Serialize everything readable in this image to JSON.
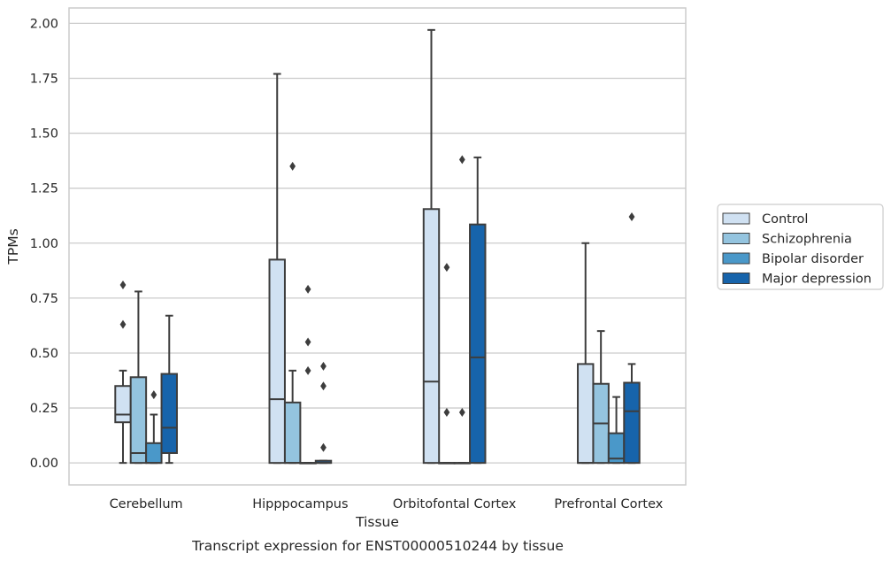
{
  "chart_data": {
    "type": "box",
    "caption": "Transcript expression for ENST00000510244 by tissue",
    "xlabel": "Tissue",
    "ylabel": "TPMs",
    "ylim": [
      -0.1,
      2.07
    ],
    "yticks": [
      "0.00",
      "0.25",
      "0.50",
      "0.75",
      "1.00",
      "1.25",
      "1.50",
      "1.75",
      "2.00"
    ],
    "grid": true,
    "legend_position": "right",
    "categories": [
      "Cerebellum",
      "Hipppocampus",
      "Orbitofontal Cortex",
      "Prefrontal Cortex"
    ],
    "series": [
      {
        "name": "Control",
        "color": "#d0e1f2",
        "boxes": [
          {
            "q1": 0.185,
            "median": 0.22,
            "q3": 0.35,
            "whislo": 0.0,
            "whishi": 0.42,
            "fliers": [
              0.63,
              0.81
            ]
          },
          {
            "q1": 0.0,
            "median": 0.29,
            "q3": 0.925,
            "whislo": 0.0,
            "whishi": 1.77,
            "fliers": []
          },
          {
            "q1": 0.0,
            "median": 0.37,
            "q3": 1.155,
            "whislo": 0.0,
            "whishi": 1.97,
            "fliers": []
          },
          {
            "q1": 0.0,
            "median": 0.0,
            "q3": 0.45,
            "whislo": 0.0,
            "whishi": 1.0,
            "fliers": []
          }
        ]
      },
      {
        "name": "Schizophrenia",
        "color": "#94c4df",
        "boxes": [
          {
            "q1": 0.0,
            "median": 0.045,
            "q3": 0.39,
            "whislo": 0.0,
            "whishi": 0.78,
            "fliers": []
          },
          {
            "q1": 0.0,
            "median": 0.0,
            "q3": 0.275,
            "whislo": 0.0,
            "whishi": 0.42,
            "fliers": [
              1.35
            ]
          },
          {
            "q1": 0.0,
            "median": 0.0,
            "q3": 0.0,
            "whislo": 0.0,
            "whishi": 0.0,
            "fliers": [
              0.23,
              0.89
            ]
          },
          {
            "q1": 0.0,
            "median": 0.18,
            "q3": 0.36,
            "whislo": 0.0,
            "whishi": 0.6,
            "fliers": []
          }
        ]
      },
      {
        "name": "Bipolar disorder",
        "color": "#4a98c9",
        "boxes": [
          {
            "q1": 0.0,
            "median": 0.0,
            "q3": 0.09,
            "whislo": 0.0,
            "whishi": 0.22,
            "fliers": [
              0.31
            ]
          },
          {
            "q1": 0.0,
            "median": 0.0,
            "q3": 0.0,
            "whislo": 0.0,
            "whishi": 0.0,
            "fliers": [
              0.42,
              0.55,
              0.79
            ]
          },
          {
            "q1": 0.0,
            "median": 0.0,
            "q3": 0.0,
            "whislo": 0.0,
            "whishi": 0.0,
            "fliers": [
              0.23,
              1.38
            ]
          },
          {
            "q1": 0.0,
            "median": 0.02,
            "q3": 0.135,
            "whislo": 0.0,
            "whishi": 0.3,
            "fliers": []
          }
        ]
      },
      {
        "name": "Major depression",
        "color": "#1764ab",
        "boxes": [
          {
            "q1": 0.045,
            "median": 0.16,
            "q3": 0.405,
            "whislo": 0.0,
            "whishi": 0.67,
            "fliers": []
          },
          {
            "q1": 0.0,
            "median": 0.0,
            "q3": 0.01,
            "whislo": 0.0,
            "whishi": 0.01,
            "fliers": [
              0.07,
              0.35,
              0.44
            ]
          },
          {
            "q1": 0.0,
            "median": 0.48,
            "q3": 1.085,
            "whislo": 0.0,
            "whishi": 1.39,
            "fliers": []
          },
          {
            "q1": 0.0,
            "median": 0.235,
            "q3": 0.365,
            "whislo": 0.0,
            "whishi": 0.45,
            "fliers": [
              1.12
            ]
          }
        ]
      }
    ]
  }
}
